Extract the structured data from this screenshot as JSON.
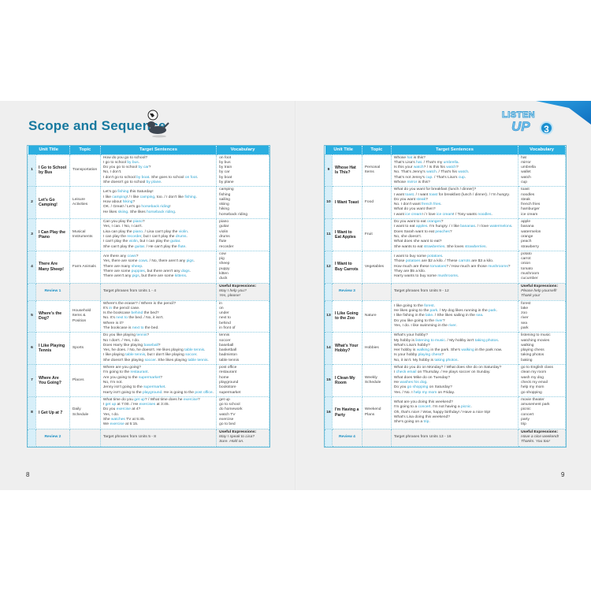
{
  "title": "Scope and Sequence",
  "logo": {
    "line1": "LISTEN",
    "line2": "UP",
    "number": "3"
  },
  "headers": [
    "Unit Title",
    "Topic",
    "Target Sentences",
    "Vocabulary"
  ],
  "colors": {
    "header": "#2aaee0",
    "title": "#17799f",
    "highlight": "#2ba3d0"
  },
  "page_numbers": {
    "left": "8",
    "right": "9"
  },
  "left_rows": [
    {
      "num": "1",
      "unit": "I Go to School by Bus",
      "topic": "Transportation",
      "sentences": [
        [
          "How do you go to school?"
        ],
        [
          "I go to school ",
          "by bus",
          "."
        ],
        [
          "Do you go to school ",
          "by car",
          "?"
        ],
        [
          "No, I don't."
        ],
        [
          "I don't go to school ",
          "by boat",
          ". She goes to school ",
          "on foot",
          "."
        ],
        [
          "She doesn't go to school ",
          "by plane",
          "."
        ]
      ],
      "vocab": [
        "on foot",
        "by bus",
        "by train",
        "by car",
        "by boat",
        "by plane"
      ]
    },
    {
      "num": "2",
      "unit": "Let's Go Camping!",
      "topic": "Leisure Activities",
      "sentences": [
        [
          "Let's go ",
          "fishing",
          " this Saturday!"
        ],
        [
          "I like ",
          "camping",
          "! / I like ",
          "camping",
          ", too. / I don't like ",
          "fishing",
          "."
        ],
        [
          "How about ",
          "hiking",
          "?"
        ],
        [
          "OK. / Great! / Let's go ",
          "horseback riding",
          "!"
        ],
        [
          "He likes ",
          "skiing",
          ". She likes ",
          "horseback riding",
          "."
        ]
      ],
      "vocab": [
        "camping",
        "fishing",
        "sailing",
        "skiing",
        "hiking",
        "horseback riding"
      ]
    },
    {
      "num": "3",
      "unit": "I Can Play the Piano",
      "topic": "Musical Instruments",
      "sentences": [
        [
          "Can you play the ",
          "piano",
          "?"
        ],
        [
          "Yes, I can. / No, I can't."
        ],
        [
          "Lisa can play the ",
          "piano",
          ". / Lisa can't play the ",
          "violin",
          "."
        ],
        [
          "I can play the ",
          "recorder",
          ", but I can't play the ",
          "drums",
          "."
        ],
        [
          "I can't play the ",
          "violin",
          ", but I can play the ",
          "guitar",
          "."
        ],
        [
          "She can't play the ",
          "guitar",
          ". / He can't play the ",
          "flute",
          "."
        ]
      ],
      "vocab": [
        "piano",
        "guitar",
        "violin",
        "drums",
        "flute",
        "recorder"
      ]
    },
    {
      "num": "4",
      "unit": "There Are Many Sheep!",
      "topic": "Farm Animals",
      "sentences": [
        [
          "Are there any ",
          "cows",
          "?"
        ],
        [
          "Yes, there are some ",
          "cows",
          ". / No, there aren't any ",
          "pigs",
          "."
        ],
        [
          "There are many ",
          "sheep",
          "."
        ],
        [
          "There are some ",
          "puppies",
          ", but there aren't any ",
          "dogs",
          "."
        ],
        [
          "There aren't any ",
          "pigs",
          ", but there are some ",
          "kittens",
          "."
        ]
      ],
      "vocab": [
        "cow",
        "pig",
        "sheep",
        "puppy",
        "kitten",
        "duck"
      ]
    },
    {
      "review": true,
      "unit": "Review 1",
      "sentences": [
        [
          "Target phrases from Units 1 - 4"
        ]
      ],
      "useful_label": "Useful Expressions:",
      "vocab": [
        "May I help you?",
        "Yes, please!"
      ]
    },
    {
      "num": "5",
      "unit": "Where's the Dog?",
      "topic": "Household Items & Position",
      "sentences": [
        [
          "Where's the eraser? / Where is the pencil?"
        ],
        [
          "It's ",
          "in",
          " the pencil case."
        ],
        [
          "Is the bookcase ",
          "behind",
          " the bed?"
        ],
        [
          "No. It's ",
          "next to",
          " the bed. / No, it isn't."
        ],
        [
          "Where is it?"
        ],
        [
          "The bookcase is ",
          "next to",
          " the bed."
        ]
      ],
      "vocab": [
        "in",
        "on",
        "under",
        "next to",
        "behind",
        "in front of"
      ]
    },
    {
      "num": "6",
      "unit": "I Like Playing Tennis",
      "topic": "Sports",
      "sentences": [
        [
          "Do you like playing ",
          "tennis",
          "?"
        ],
        [
          "No I don't. / Yes, I do."
        ],
        [
          "Does Harry like playing ",
          "baseball",
          "?"
        ],
        [
          "Yes, he does. / No, he doesn't. He likes playing ",
          "table tennis",
          "."
        ],
        [
          "I like playing ",
          "table tennis",
          ", but I don't like playing ",
          "soccer",
          "."
        ],
        [
          "She doesn't like playing ",
          "soccer",
          ". She likes playing ",
          "table tennis",
          "."
        ]
      ],
      "vocab": [
        "tennis",
        "soccer",
        "baseball",
        "basketball",
        "badminton",
        "table tennis"
      ]
    },
    {
      "num": "7",
      "unit": "Where Are You Going?",
      "topic": "Places",
      "sentences": [
        [
          "Where are you going?"
        ],
        [
          "I'm going to the ",
          "restaurant",
          "."
        ],
        [
          "Are you going to the ",
          "supermarket",
          "?"
        ],
        [
          "No, I'm not."
        ],
        [
          "Jenny isn't going to the ",
          "supermarket",
          "."
        ],
        [
          "Harry isn't going to the ",
          "playground",
          ". He is going to the ",
          "post office",
          "."
        ]
      ],
      "vocab": [
        "post office",
        "restaurant",
        "home",
        "playground",
        "bookstore",
        "supermarket"
      ]
    },
    {
      "num": "8",
      "unit": "I Get Up at 7",
      "topic": "Daily Schedule",
      "sentences": [
        [
          "What time do you ",
          "get up",
          "? / What time does he ",
          "exercise",
          "?"
        ],
        [
          "I ",
          "get up",
          " at 7:00. / He ",
          "exercises",
          " at 3:45."
        ],
        [
          "Do you ",
          "exercise",
          " at 4?"
        ],
        [
          "Yes, I do."
        ],
        [
          "She ",
          "watches",
          " TV at 5:45."
        ],
        [
          "We ",
          "exercise",
          " at 5:15."
        ]
      ],
      "vocab": [
        "get up",
        "go to school",
        "do homework",
        "watch TV",
        "exercise",
        "go to bed"
      ]
    },
    {
      "review": true,
      "unit": "Review 2",
      "sentences": [
        [
          "Target phrases from Units 5 - 8"
        ]
      ],
      "useful_label": "Useful Expressions:",
      "vocab": [
        "May I speak to Lisa?",
        "Sure. Hold on."
      ]
    }
  ],
  "right_rows": [
    {
      "num": "9",
      "unit": "Whose Hat Is This?",
      "topic": "Personal Items",
      "sentences": [
        [
          "Whose ",
          "hat",
          " is this?"
        ],
        [
          "That's Lisa's ",
          "hat",
          ". / That's my ",
          "umbrella",
          "."
        ],
        [
          "Is this your ",
          "watch",
          "? / Is this his ",
          "watch",
          "?"
        ],
        [
          "No. That's Jenny's ",
          "watch",
          ". / That's his ",
          "watch",
          "."
        ],
        [
          "That's not Jenny's ",
          "cup",
          ". / That's Lisa's ",
          "cup",
          "."
        ],
        [
          "Whose ",
          "mirror",
          " is this?"
        ]
      ],
      "vocab": [
        "hat",
        "mirror",
        "umbrella",
        "wallet",
        "watch",
        "cup"
      ]
    },
    {
      "num": "10",
      "unit": "I Want Toast",
      "topic": "Food",
      "sentences": [
        [
          "What do you want for breakfast (lunch / dinner)?"
        ],
        [
          "I want ",
          "toast",
          ". / I want ",
          "toast",
          " for breakfast (lunch / dinner). / I'm hungry."
        ],
        [
          "Do you want ",
          "steak",
          "?"
        ],
        [
          "No. I don't want ",
          "french fries",
          "."
        ],
        [
          "What do you want then?"
        ],
        [
          "I want ",
          "ice cream",
          "! / I love ",
          "ice cream",
          "! / Tony wants ",
          "noodles",
          "."
        ]
      ],
      "vocab": [
        "toast",
        "noodles",
        "steak",
        "french fries",
        "hamburger",
        "ice cream"
      ]
    },
    {
      "num": "11",
      "unit": "I Want to Eat Apples",
      "topic": "Fruit",
      "sentences": [
        [
          "Do you want to eat ",
          "oranges",
          "?"
        ],
        [
          "I want to eat ",
          "apples",
          ". I'm hungry. / I like ",
          "bananas",
          ". / I love ",
          "watermelons",
          "."
        ],
        [
          "Does Sarah want to eat ",
          "peaches",
          "?"
        ],
        [
          "No, she doesn't."
        ],
        [
          "What does she want to eat?"
        ],
        [
          "She wants to eat ",
          "strawberries",
          ". She loves ",
          "strawberries",
          "."
        ]
      ],
      "vocab": [
        "apple",
        "banana",
        "watermelon",
        "orange",
        "peach",
        "strawberry"
      ]
    },
    {
      "num": "12",
      "unit": "I Want to Buy Carrots",
      "topic": "Vegetables",
      "sentences": [
        [
          "I want to buy some ",
          "potatoes",
          "."
        ],
        [
          "Those ",
          "potatoes",
          " are $2 a kilo. / These ",
          "carrots",
          " are $3 a kilo."
        ],
        [
          "How much are these ",
          "tomatoes",
          "? / How much are those ",
          "mushrooms",
          "?"
        ],
        [
          "They are $5 a kilo."
        ],
        [
          "Harry wants to buy some ",
          "mushrooms",
          "."
        ]
      ],
      "vocab": [
        "potato",
        "carrot",
        "onion",
        "tomato",
        "mushroom",
        "cucumber"
      ]
    },
    {
      "review": true,
      "unit": "Review 3",
      "sentences": [
        [
          "Target phrases from Units 9 - 12"
        ]
      ],
      "useful_label": "Useful Expressions:",
      "vocab": [
        "Please help yourself!",
        "Thank you!"
      ]
    },
    {
      "num": "13",
      "unit": "I Like Going to the Zoo",
      "topic": "Nature",
      "sentences": [
        [
          "I like going to the ",
          "forest",
          "."
        ],
        [
          "He likes going to the ",
          "park",
          ". / My dog likes running in the ",
          "park",
          "."
        ],
        [
          "I like fishing in the ",
          "lake",
          ". / She likes sailing in the ",
          "sea",
          "."
        ],
        [
          "Do you like going to the ",
          "river",
          "?"
        ],
        [
          "Yes, I do. I like swimming in the ",
          "river",
          "."
        ]
      ],
      "vocab": [
        "forest",
        "lake",
        "zoo",
        "river",
        "sea",
        "park"
      ]
    },
    {
      "num": "14",
      "unit": "What's Your Hobby?",
      "topic": "Hobbies",
      "sentences": [
        [
          "What's your hobby?"
        ],
        [
          "My hobby is ",
          "listening to music",
          ". / My hobby isn't ",
          "taking photos",
          "."
        ],
        [
          "What's Lisa's hobby?"
        ],
        [
          "Her hobby is ",
          "walking",
          " in the park. She's ",
          "walking",
          " in the park now."
        ],
        [
          "Is your hobby ",
          "playing chess",
          "?"
        ],
        [
          "No, it isn't. My hobby is ",
          "taking photos",
          "."
        ]
      ],
      "vocab": [
        "listening to music",
        "watching movies",
        "walking",
        "playing chess",
        "taking photos",
        "baking"
      ]
    },
    {
      "num": "15",
      "unit": "I Clean My Room",
      "topic": "Weekly Schedule",
      "sentences": [
        [
          "What do you do on Monday? / What does she do on Saturday?"
        ],
        [
          "I ",
          "check email",
          " on Thursday. / He plays soccer on Sunday."
        ],
        [
          "What does Mike do on Tuesday?"
        ],
        [
          "He ",
          "washes his dog",
          "."
        ],
        [
          "Do you ",
          "go shopping",
          " on Saturday?"
        ],
        [
          "Yes. / No. I ",
          "help my mom",
          " on Friday."
        ]
      ],
      "vocab": [
        "go to English class",
        "clean my room",
        "wash my dog",
        "check my email",
        "help my mom",
        "go shopping"
      ]
    },
    {
      "num": "16",
      "unit": "I'm Having a Party",
      "topic": "Weekend Plans",
      "sentences": [
        [
          "What are you doing this weekend?"
        ],
        [
          "I'm going to a ",
          "concert",
          ". I'm not having a ",
          "picnic",
          "."
        ],
        [
          "Oh, that's nice! / Wow, happy birthday! / Have a nice trip!"
        ],
        [
          "What's Lisa doing this weekend?"
        ],
        [
          "She's going on a ",
          "trip",
          "."
        ]
      ],
      "vocab": [
        "movie theater",
        "amusement park",
        "picnic",
        "concert",
        "party",
        "trip"
      ]
    },
    {
      "review": true,
      "unit": "Review 4",
      "sentences": [
        [
          "Target phrases from Units 13 - 16"
        ]
      ],
      "useful_label": "Useful Expressions:",
      "vocab": [
        "Have a nice weekend!",
        "Thanks. You too!"
      ]
    }
  ]
}
